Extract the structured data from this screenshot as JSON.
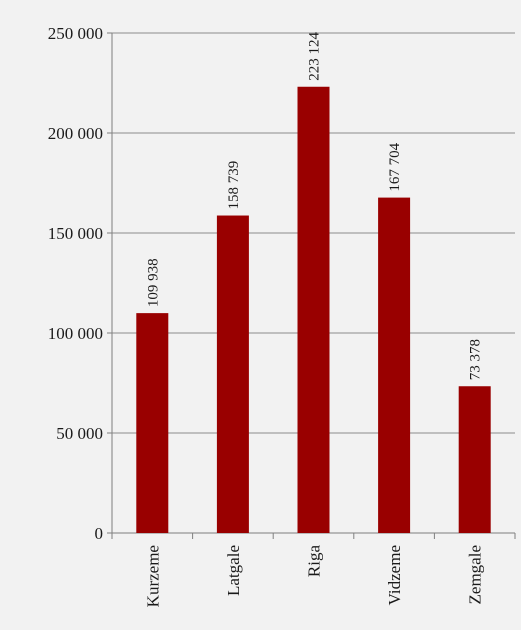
{
  "chart_data": {
    "type": "bar",
    "categories": [
      "Kurzeme",
      "Latgale",
      "Riga",
      "Vidzeme",
      "Zemgale"
    ],
    "values": [
      109938,
      158739,
      223124,
      167704,
      73378
    ],
    "data_labels": [
      "109 938",
      "158 739",
      "223 124",
      "167 704",
      "73 378"
    ],
    "title": "",
    "xlabel": "",
    "ylabel": "",
    "ylim": [
      0,
      250000
    ],
    "yticks": [
      0,
      50000,
      100000,
      150000,
      200000,
      250000
    ],
    "ytick_labels": [
      "0",
      "50 000",
      "100 000",
      "150 000",
      "200 000",
      "250 000"
    ],
    "grid": true,
    "category_label_orientation": "vertical",
    "data_label_orientation": "vertical",
    "colors": {
      "bar": "#990000",
      "grid": "#8c8c8c",
      "background": "#f2f2f2",
      "axis": "#7f7f7f"
    }
  }
}
